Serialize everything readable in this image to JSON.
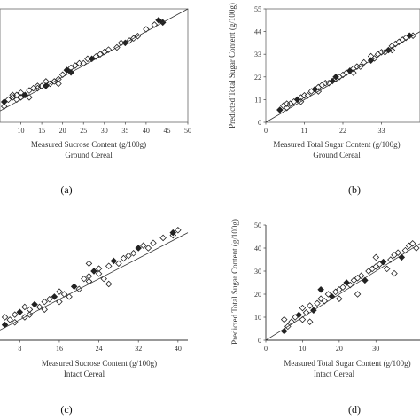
{
  "chart_data": [
    {
      "type": "scatter",
      "panel_label": "(a)",
      "xlabel": "Measured Sucrose Content (g/100g)",
      "xlabel2": "Ground Cereal",
      "ylabel": "",
      "xlim": [
        5,
        50
      ],
      "ylim": [
        0,
        50
      ],
      "x_ticks": [
        10,
        15,
        20,
        25,
        30,
        35,
        40,
        45,
        50
      ],
      "y_ticks": [],
      "grid": false,
      "identity_line": true,
      "points": [
        [
          6,
          9
        ],
        [
          7,
          10
        ],
        [
          8,
          11
        ],
        [
          9,
          12
        ],
        [
          10,
          13
        ],
        [
          11,
          12
        ],
        [
          12,
          14
        ],
        [
          13,
          15
        ],
        [
          14,
          15
        ],
        [
          15,
          16
        ],
        [
          16,
          16
        ],
        [
          17,
          17
        ],
        [
          18,
          18
        ],
        [
          19,
          19
        ],
        [
          20,
          21
        ],
        [
          21,
          23
        ],
        [
          22,
          24
        ],
        [
          23,
          25
        ],
        [
          24,
          26
        ],
        [
          25,
          26
        ],
        [
          27,
          28
        ],
        [
          28,
          29
        ],
        [
          30,
          31
        ],
        [
          31,
          32
        ],
        [
          33,
          33
        ],
        [
          35,
          35
        ],
        [
          36,
          36
        ],
        [
          38,
          38
        ],
        [
          40,
          41
        ],
        [
          42,
          43
        ],
        [
          44,
          44
        ],
        [
          8,
          12
        ],
        [
          12,
          11
        ],
        [
          16,
          18
        ],
        [
          19,
          17
        ],
        [
          22,
          22
        ],
        [
          26,
          28
        ],
        [
          29,
          30
        ],
        [
          34,
          35
        ],
        [
          37,
          37
        ],
        [
          43,
          45
        ],
        [
          10,
          11
        ],
        [
          14,
          16
        ],
        [
          6,
          7
        ],
        [
          9,
          10
        ]
      ]
    },
    {
      "type": "scatter",
      "panel_label": "(b)",
      "xlabel": "Measured Total Sugar Content (g/100g)",
      "xlabel2": "Ground Cereal",
      "ylabel": "Predicted Total Sugar Content (g/100g)",
      "xlim": [
        0,
        44
      ],
      "ylim": [
        0,
        55
      ],
      "x_ticks": [
        0,
        11,
        22,
        33
      ],
      "y_ticks": [
        0,
        11,
        22,
        33,
        44,
        55
      ],
      "grid": false,
      "identity_line": true,
      "points": [
        [
          4,
          6
        ],
        [
          5,
          8
        ],
        [
          6,
          7
        ],
        [
          7,
          9
        ],
        [
          8,
          10
        ],
        [
          9,
          11
        ],
        [
          10,
          12
        ],
        [
          11,
          13
        ],
        [
          12,
          13
        ],
        [
          13,
          15
        ],
        [
          14,
          16
        ],
        [
          15,
          17
        ],
        [
          16,
          18
        ],
        [
          17,
          19
        ],
        [
          18,
          19
        ],
        [
          19,
          20
        ],
        [
          20,
          21
        ],
        [
          21,
          22
        ],
        [
          22,
          23
        ],
        [
          23,
          24
        ],
        [
          24,
          25
        ],
        [
          25,
          26
        ],
        [
          26,
          27
        ],
        [
          27,
          27
        ],
        [
          28,
          29
        ],
        [
          30,
          30
        ],
        [
          31,
          31
        ],
        [
          32,
          33
        ],
        [
          33,
          34
        ],
        [
          34,
          34
        ],
        [
          35,
          35
        ],
        [
          36,
          37
        ],
        [
          37,
          38
        ],
        [
          38,
          39
        ],
        [
          40,
          41
        ],
        [
          41,
          42
        ],
        [
          42,
          42
        ],
        [
          6,
          9
        ],
        [
          10,
          10
        ],
        [
          15,
          15
        ],
        [
          20,
          22
        ],
        [
          25,
          24
        ],
        [
          30,
          32
        ],
        [
          36,
          35
        ],
        [
          39,
          40
        ]
      ]
    },
    {
      "type": "scatter",
      "panel_label": "(c)",
      "xlabel": "Measured Sucrose Content (g/100g)",
      "xlabel2": "Intact Cereal",
      "ylabel": "",
      "xlim": [
        4,
        42
      ],
      "ylim": [
        0,
        45
      ],
      "x_ticks": [
        8,
        16,
        24,
        32,
        40
      ],
      "y_ticks": [],
      "grid": false,
      "identity_line": true,
      "points": [
        [
          5,
          6
        ],
        [
          5,
          9
        ],
        [
          6,
          8
        ],
        [
          7,
          10
        ],
        [
          7,
          7
        ],
        [
          8,
          11
        ],
        [
          9,
          9
        ],
        [
          9,
          13
        ],
        [
          10,
          12
        ],
        [
          10,
          10
        ],
        [
          11,
          14
        ],
        [
          12,
          13
        ],
        [
          13,
          15
        ],
        [
          13,
          12
        ],
        [
          14,
          16
        ],
        [
          15,
          17
        ],
        [
          16,
          15
        ],
        [
          16,
          19
        ],
        [
          17,
          18
        ],
        [
          18,
          17
        ],
        [
          19,
          21
        ],
        [
          20,
          20
        ],
        [
          21,
          24
        ],
        [
          22,
          25
        ],
        [
          22,
          23
        ],
        [
          23,
          27
        ],
        [
          24,
          28
        ],
        [
          24,
          26
        ],
        [
          25,
          24
        ],
        [
          26,
          29
        ],
        [
          27,
          31
        ],
        [
          28,
          30
        ],
        [
          29,
          32
        ],
        [
          30,
          33
        ],
        [
          31,
          34
        ],
        [
          32,
          36
        ],
        [
          33,
          37
        ],
        [
          34,
          36
        ],
        [
          35,
          38
        ],
        [
          37,
          40
        ],
        [
          39,
          42
        ],
        [
          39,
          41
        ],
        [
          40,
          43
        ],
        [
          22,
          30
        ],
        [
          26,
          22
        ]
      ]
    },
    {
      "type": "scatter",
      "panel_label": "(d)",
      "xlabel": "Measured Total Sugar Content (g/100g)",
      "xlabel2": "Intact Cereal",
      "ylabel": "Predicted Total Sugar Content (g/100g)",
      "xlim": [
        0,
        42
      ],
      "ylim": [
        0,
        50
      ],
      "x_ticks": [
        0,
        10,
        20,
        30
      ],
      "y_ticks": [
        0,
        10,
        20,
        30,
        40,
        50
      ],
      "grid": false,
      "identity_line": true,
      "points": [
        [
          5,
          4
        ],
        [
          5,
          9
        ],
        [
          6,
          6
        ],
        [
          7,
          8
        ],
        [
          8,
          10
        ],
        [
          9,
          11
        ],
        [
          10,
          9
        ],
        [
          10,
          14
        ],
        [
          11,
          12
        ],
        [
          12,
          15
        ],
        [
          13,
          13
        ],
        [
          14,
          16
        ],
        [
          15,
          18
        ],
        [
          16,
          17
        ],
        [
          17,
          20
        ],
        [
          18,
          19
        ],
        [
          19,
          21
        ],
        [
          20,
          22
        ],
        [
          20,
          18
        ],
        [
          21,
          23
        ],
        [
          22,
          25
        ],
        [
          23,
          24
        ],
        [
          24,
          26
        ],
        [
          25,
          27
        ],
        [
          26,
          28
        ],
        [
          27,
          26
        ],
        [
          28,
          30
        ],
        [
          29,
          31
        ],
        [
          30,
          32
        ],
        [
          31,
          33
        ],
        [
          32,
          34
        ],
        [
          33,
          31
        ],
        [
          34,
          35
        ],
        [
          35,
          37
        ],
        [
          36,
          38
        ],
        [
          37,
          36
        ],
        [
          38,
          39
        ],
        [
          39,
          41
        ],
        [
          40,
          42
        ],
        [
          41,
          40
        ],
        [
          15,
          22
        ],
        [
          25,
          20
        ],
        [
          35,
          29
        ],
        [
          12,
          8
        ],
        [
          30,
          36
        ]
      ]
    }
  ]
}
